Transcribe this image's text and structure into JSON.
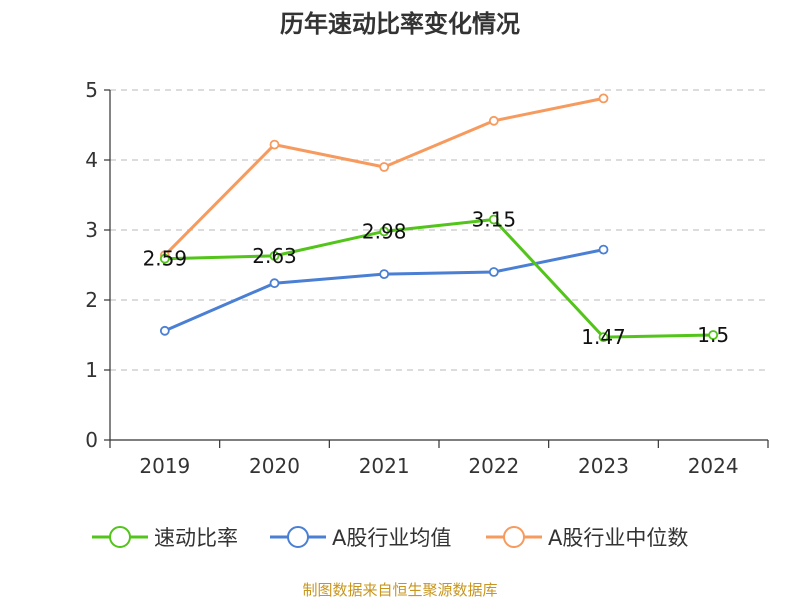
{
  "chart_data": {
    "type": "line",
    "title": "历年速动比率变化情况",
    "categories": [
      "2019",
      "2020",
      "2021",
      "2022",
      "2023",
      "2024"
    ],
    "ylim": [
      0,
      5
    ],
    "yticks": [
      "0",
      "1",
      "2",
      "3",
      "4",
      "5"
    ],
    "grid": "horizontal-dashed",
    "legend_position": "bottom",
    "series": [
      {
        "name": "速动比率",
        "color": "#52c41a",
        "values": [
          2.59,
          2.63,
          2.98,
          3.15,
          1.47,
          1.5
        ],
        "labels": [
          "2.59",
          "2.63",
          "2.98",
          "3.15",
          "1.47",
          "1.5"
        ]
      },
      {
        "name": "A股行业均值",
        "color": "#4a7fd4",
        "values": [
          1.56,
          2.24,
          2.37,
          2.4,
          2.72,
          null
        ]
      },
      {
        "name": "A股行业中位数",
        "color": "#f79a5e",
        "values": [
          2.64,
          4.22,
          3.9,
          4.56,
          4.88,
          null
        ]
      }
    ]
  },
  "source": "制图数据来自恒生聚源数据库"
}
